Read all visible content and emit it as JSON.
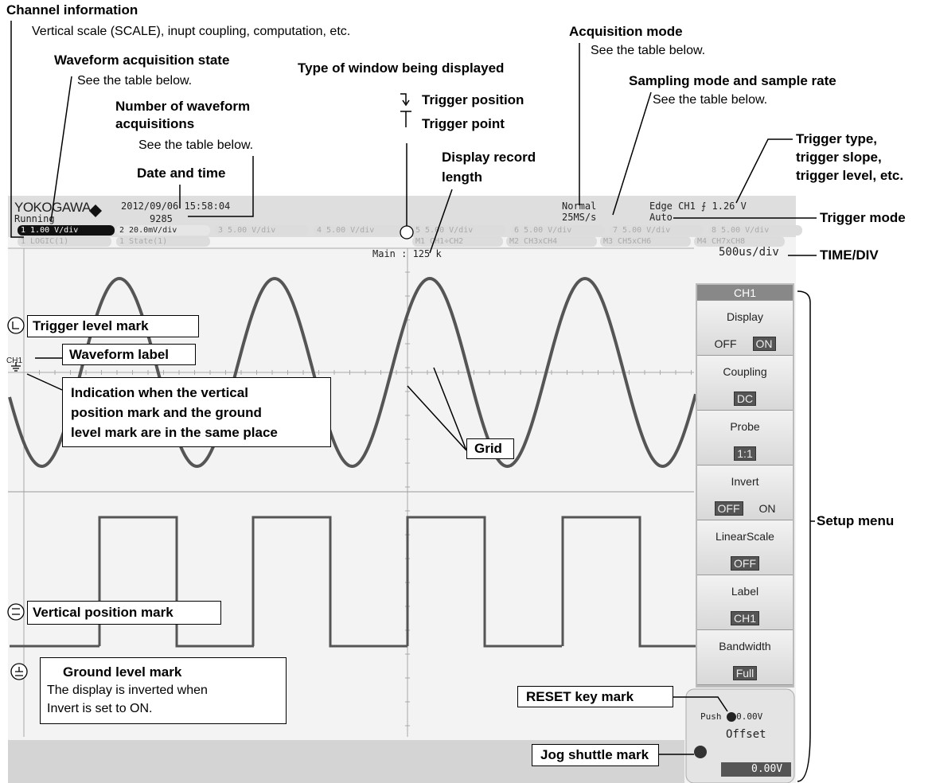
{
  "annotations": {
    "channel_information": {
      "title": "Channel information",
      "text": "Vertical scale (SCALE), inupt coupling, computation, etc."
    },
    "acquisition_state": {
      "title": "Waveform acquisition state",
      "text": "See the table below."
    },
    "number_of_acquisitions": {
      "title": [
        "Number of waveform",
        "acquisitions"
      ],
      "text": "See the table below."
    },
    "date_and_time": "Date and time",
    "window_type": "Type of window being displayed",
    "trigger_position": "Trigger position",
    "trigger_point": "Trigger point",
    "display_record_length": [
      "Display record",
      "length"
    ],
    "acquisition_mode": {
      "title": "Acquisition mode",
      "text": "See the table below."
    },
    "sampling_mode": {
      "title": "Sampling mode and sample rate",
      "text": "See the table below."
    },
    "trigger_type": [
      "Trigger type,",
      "trigger slope,",
      "trigger level, etc."
    ],
    "trigger_mode": "Trigger mode",
    "time_div": "TIME/DIV",
    "setup_menu": "Setup menu",
    "trigger_level_mark": "Trigger level mark",
    "waveform_label": "Waveform label",
    "same_place_indication": [
      "Indication when the vertical",
      "position mark and the ground",
      "level mark are in the same place"
    ],
    "grid": "Grid",
    "vertical_position_mark": "Vertical position mark",
    "ground_level_mark": {
      "title": "Ground level mark",
      "text": [
        "The display is inverted when",
        "Invert is set to ON."
      ]
    },
    "reset_key_mark": "RESET key mark",
    "jog_shuttle_mark": "Jog shuttle mark"
  },
  "screen": {
    "logo": "YOKOGAWA",
    "datetime": "2012/09/06 15:58:04",
    "state": "Running",
    "acquisitions": "9285",
    "acquisition_mode": "Normal",
    "sample_rate": "25MS/s",
    "trigger": "Edge CH1",
    "trigger_level": "1.26 V",
    "trigger_mode": "Auto",
    "channels": [
      {
        "number": "1",
        "scale": "1.00 V/div"
      },
      {
        "number": "2",
        "scale": "20.0mV/div"
      },
      {
        "number": "3",
        "scale": "5.00 V/div"
      },
      {
        "number": "4",
        "scale": "5.00 V/div"
      },
      {
        "number": "5",
        "scale": "5.00 V/div"
      },
      {
        "number": "6",
        "scale": "5.00 V/div"
      },
      {
        "number": "7",
        "scale": "5.00 V/div"
      },
      {
        "number": "8",
        "scale": "5.00 V/div"
      }
    ],
    "logic_tabs": [
      "1 LOGIC(1)",
      "1 State(1)"
    ],
    "math_tabs": [
      "M1 CH1÷CH2",
      "M2 CH3xCH4",
      "M3 CH5xCH6",
      "M4 CH7xCH8"
    ],
    "record_length": "Main : 125 k",
    "time_div": "500us/div",
    "waveform_label": "CH1",
    "menu": {
      "title": "CH1",
      "items": [
        {
          "label": "Display",
          "value": [
            "OFF",
            "ON"
          ]
        },
        {
          "label": "Coupling",
          "value": [
            "DC"
          ]
        },
        {
          "label": "Probe",
          "value": [
            "1:1"
          ]
        },
        {
          "label": "Invert",
          "value": [
            "OFF",
            "ON"
          ]
        },
        {
          "label": "LinearScale",
          "value": [
            "OFF"
          ]
        },
        {
          "label": "Label",
          "value": [
            "CH1"
          ]
        },
        {
          "label": "Bandwidth",
          "value": [
            "Full"
          ]
        }
      ]
    },
    "push": "Push",
    "push_value": ":0.00V",
    "offset_label": "Offset",
    "offset_value": "0.00V"
  }
}
